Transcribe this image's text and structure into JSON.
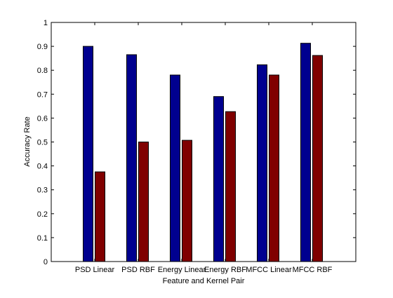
{
  "chart_data": {
    "type": "bar",
    "title": "",
    "xlabel": "Feature and Kernel Pair",
    "ylabel": "Accuracy Rate",
    "categories": [
      "PSD Linear",
      "PSD RBF",
      "Energy Linear",
      "Energy RBF",
      "MFCC Linear",
      "MFCC RBF"
    ],
    "series": [
      {
        "values": [
          0.9,
          0.865,
          0.78,
          0.69,
          0.823,
          0.913
        ],
        "color": "#00008f"
      },
      {
        "values": [
          0.375,
          0.5,
          0.507,
          0.627,
          0.78,
          0.862
        ],
        "color": "#800000"
      }
    ],
    "ylim": [
      0,
      1
    ],
    "yticks": [
      "0",
      "0.1",
      "0.2",
      "0.3",
      "0.4",
      "0.5",
      "0.6",
      "0.7",
      "0.8",
      "0.9",
      "1"
    ],
    "grid": false,
    "legend": "none"
  }
}
